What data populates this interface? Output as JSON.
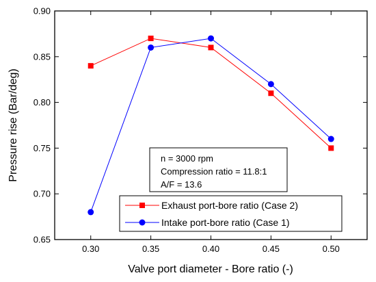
{
  "chart_data": {
    "type": "line",
    "x": [
      0.3,
      0.35,
      0.4,
      0.45,
      0.5
    ],
    "xticks": [
      "0.30",
      "0.35",
      "0.40",
      "0.45",
      "0.50"
    ],
    "yticks": [
      "0.65",
      "0.70",
      "0.75",
      "0.80",
      "0.85",
      "0.90"
    ],
    "xlim": [
      0.27,
      0.53
    ],
    "ylim": [
      0.65,
      0.9
    ],
    "xlabel": "Valve port diameter - Bore ratio (-)",
    "ylabel": "Pressure rise (Bar/deg)",
    "grid": false,
    "legend_position": "bottom-center",
    "series": [
      {
        "name": "Exhaust port-bore ratio (Case 2)",
        "values": [
          0.84,
          0.87,
          0.86,
          0.81,
          0.75
        ],
        "color": "#ff0000",
        "marker": "square"
      },
      {
        "name": "Intake port-bore ratio (Case 1)",
        "values": [
          0.68,
          0.86,
          0.87,
          0.82,
          0.76
        ],
        "color": "#0000ff",
        "marker": "circle"
      }
    ],
    "annotation": {
      "lines": [
        "n = 3000 rpm",
        "Compression ratio = 11.8:1",
        "A/F = 13.6"
      ]
    }
  }
}
